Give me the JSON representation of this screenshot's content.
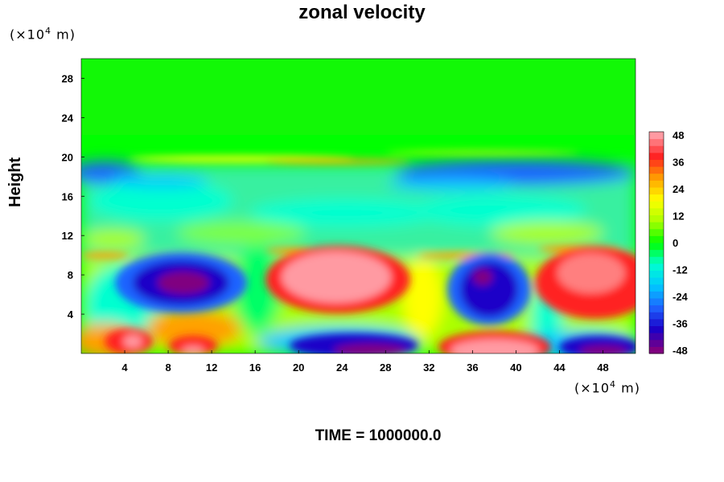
{
  "chart_data": {
    "type": "heatmap",
    "title": "zonal velocity",
    "ylabel": "Height",
    "x_unit_label": "(×10",
    "y_unit_label": "(×10",
    "unit_exponent": "4",
    "unit_suffix": "m)",
    "x_ticks": [
      "4",
      "8",
      "12",
      "16",
      "20",
      "24",
      "28",
      "32",
      "36",
      "40",
      "44",
      "48"
    ],
    "y_ticks": [
      "4",
      "8",
      "12",
      "16",
      "20",
      "24",
      "28"
    ],
    "xlim": [
      0,
      51
    ],
    "ylim": [
      0,
      30
    ],
    "colorbar_ticks": [
      "48",
      "36",
      "24",
      "12",
      "0",
      "-12",
      "-24",
      "-36",
      "-48"
    ],
    "colorbar_range": [
      -48,
      48
    ],
    "colormap": [
      "#800080",
      "#1a00c8",
      "#1e64ff",
      "#00c8ff",
      "#00ffd0",
      "#00ff00",
      "#aaff00",
      "#ffff00",
      "#ffa000",
      "#ff2020",
      "#ff9aa2"
    ],
    "features": [
      {
        "x": 9,
        "y": 7.5,
        "value": -48
      },
      {
        "x": 24,
        "y": 8,
        "value": 48
      },
      {
        "x": 38,
        "y": 6.5,
        "value": -48
      },
      {
        "x": 48,
        "y": 7.5,
        "value": 44
      },
      {
        "x": 10,
        "y": 1.5,
        "value": 40
      },
      {
        "x": 28,
        "y": 0.8,
        "value": -44
      },
      {
        "x": 38,
        "y": 0.8,
        "value": 48
      },
      {
        "x": 48,
        "y": 0.6,
        "value": -44
      },
      {
        "x": 40,
        "y": 18.5,
        "value": -40
      },
      {
        "x": 4,
        "y": 18.5,
        "value": -34
      },
      {
        "x": 25,
        "y": 19.8,
        "value": 18
      }
    ],
    "grid": false,
    "legend": "right"
  },
  "footer": {
    "time_text": "TIME = 1000000.0"
  }
}
